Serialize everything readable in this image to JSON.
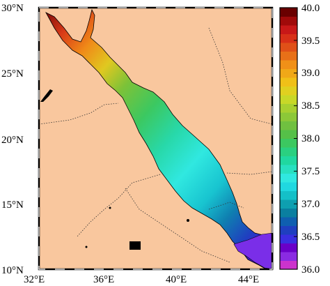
{
  "map": {
    "land_color": "#f9c79e",
    "border_style": "dotted",
    "lat_labels": [
      "30°N",
      "25°N",
      "20°N",
      "15°N",
      "10°N"
    ],
    "lon_labels": [
      "32°E",
      "36°E",
      "40°E",
      "44°E"
    ],
    "lat_range": [
      10,
      30
    ],
    "lon_range": [
      32,
      45
    ],
    "region": "Red Sea",
    "field_min": 36.0,
    "field_max": 40.0
  },
  "colorbar": {
    "ticks": [
      "40.0",
      "39.5",
      "39.0",
      "38.5",
      "38.0",
      "37.5",
      "37.0",
      "36.5",
      "36.0"
    ],
    "colors": [
      "#cc33cc",
      "#8a2be2",
      "#6a00c8",
      "#3a2ee0",
      "#1f3fc0",
      "#0f5fb0",
      "#0a7fa0",
      "#0e9fb0",
      "#14c0c8",
      "#20d8e0",
      "#30e8e0",
      "#28e0c0",
      "#20d8a0",
      "#2ad080",
      "#3cc860",
      "#55c048",
      "#70c040",
      "#8cc838",
      "#a8d030",
      "#c8d828",
      "#e0d020",
      "#f0c018",
      "#f0a818",
      "#f09018",
      "#e87018",
      "#e05018",
      "#d83018",
      "#c81818",
      "#a00a0a",
      "#6a0000"
    ]
  }
}
